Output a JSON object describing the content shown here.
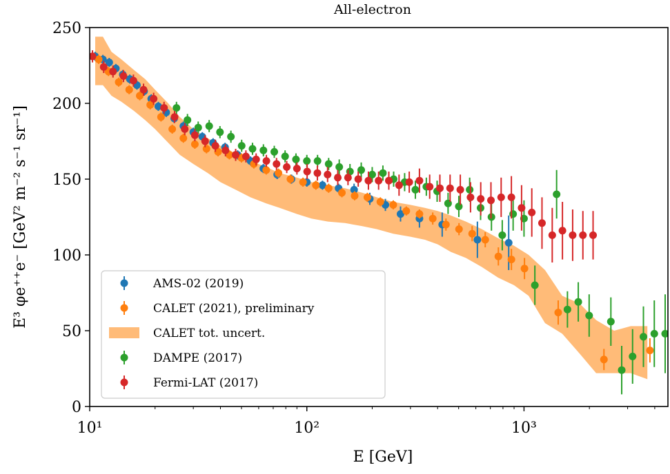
{
  "chart_data": {
    "type": "scatter",
    "title": "All-electron",
    "xlabel": "E [GeV]",
    "ylabel": "E³ φe⁺⁺e⁻ [GeV² m⁻² s⁻¹ sr⁻¹]",
    "xscale": "log",
    "xlim": [
      10,
      4600
    ],
    "ylim": [
      0,
      250
    ],
    "x_ticks": [
      10,
      100,
      1000
    ],
    "x_tick_labels": [
      "10¹",
      "10²",
      "10³"
    ],
    "y_ticks": [
      0,
      50,
      100,
      150,
      200,
      250
    ],
    "y_tick_labels": [
      "0",
      "50",
      "100",
      "150",
      "200",
      "250"
    ],
    "legend_position": "lower-left",
    "band": {
      "name": "CALET tot. uncert.",
      "color": "#ffbb78",
      "x": [
        10.6,
        11.5,
        12.6,
        14,
        16,
        18,
        20,
        23,
        26,
        30,
        35,
        40,
        47,
        55,
        65,
        75,
        90,
        105,
        125,
        150,
        180,
        210,
        250,
        300,
        350,
        400,
        460,
        540,
        640,
        760,
        900,
        1050,
        1250,
        1500,
        1800,
        2150,
        2600,
        3100,
        3700
      ],
      "upper": [
        244,
        244,
        234,
        229,
        222,
        216,
        209,
        200,
        191,
        183,
        177,
        172,
        167,
        162,
        158,
        154,
        151,
        148,
        146,
        144,
        141,
        138,
        135,
        133,
        131,
        129,
        126,
        122,
        117,
        111,
        106,
        100,
        90,
        73,
        68,
        57,
        50,
        53,
        53
      ],
      "lower": [
        212,
        212,
        205,
        201,
        195,
        189,
        183,
        174,
        166,
        160,
        154,
        148,
        143,
        138,
        134,
        131,
        127,
        124,
        122,
        121,
        119,
        117,
        114,
        112,
        110,
        107,
        102,
        98,
        92,
        85,
        80,
        73,
        55,
        48,
        35,
        22,
        22,
        22,
        18
      ]
    },
    "series": [
      {
        "name": "AMS-02 (2019)",
        "color": "#1f77b4",
        "x": [
          10.6,
          11.5,
          12.3,
          13.2,
          14.2,
          15.3,
          16.5,
          17.8,
          19.2,
          20.7,
          22.5,
          24.5,
          27,
          30,
          33,
          37,
          42,
          48,
          55,
          63,
          73,
          85,
          100,
          118,
          140,
          165,
          195,
          230,
          270,
          330,
          420,
          610,
          850
        ],
        "y": [
          231,
          229,
          227,
          223,
          219,
          216,
          212,
          208,
          203,
          198,
          194,
          190,
          185,
          181,
          178,
          174,
          171,
          166,
          162,
          157,
          153,
          150,
          148,
          146,
          144,
          143,
          137,
          133,
          127,
          124,
          120,
          110,
          108
        ],
        "err": [
          3,
          3,
          3,
          3,
          3,
          3,
          3,
          3,
          3,
          3,
          3,
          3,
          3,
          3,
          3,
          3,
          3,
          3,
          3,
          3,
          3,
          3,
          3,
          3,
          3,
          4,
          4,
          4,
          5,
          6,
          8,
          12,
          18
        ]
      },
      {
        "name": "CALET (2021), preliminary",
        "color": "#ff7f0e",
        "x": [
          11,
          12.2,
          13.6,
          15.2,
          17,
          19,
          21.3,
          24,
          27,
          30.5,
          34.5,
          39,
          44,
          50,
          57,
          65,
          74,
          84,
          96,
          110,
          126,
          145,
          166,
          190,
          218,
          250,
          287,
          330,
          380,
          437,
          502,
          577,
          663,
          762,
          875,
          1005,
          1437,
          2334,
          3800
        ],
        "y": [
          229,
          221,
          214,
          209,
          205,
          199,
          191,
          183,
          177,
          173,
          170,
          168,
          166,
          164,
          160,
          156,
          154,
          150,
          148,
          146,
          144,
          141,
          139,
          138,
          135,
          133,
          129,
          127,
          124,
          120,
          117,
          114,
          110,
          99,
          97,
          91,
          62,
          31,
          37
        ],
        "err": [
          3,
          3,
          3,
          3,
          3,
          3,
          3,
          3,
          3,
          3,
          3,
          3,
          3,
          3,
          3,
          3,
          3,
          3,
          3,
          3,
          3,
          3,
          3,
          3,
          3,
          3,
          3,
          3,
          4,
          4,
          4,
          5,
          5,
          6,
          7,
          7,
          8,
          7,
          8
        ]
      },
      {
        "name": "DAMPE (2017)",
        "color": "#2ca02c",
        "x": [
          25.1,
          28.2,
          31.6,
          35.5,
          39.8,
          44.7,
          50.1,
          56.2,
          63.1,
          70.8,
          79.4,
          89.1,
          100,
          112,
          126,
          141,
          158,
          178,
          200,
          224,
          251,
          282,
          316,
          355,
          398,
          447,
          501,
          562,
          631,
          708,
          794,
          891,
          1000,
          1122,
          1413,
          1585,
          1778,
          1995,
          2512,
          2818,
          3162,
          3548,
          3981,
          4467
        ],
        "y": [
          197,
          189,
          184,
          185,
          181,
          178,
          172,
          170,
          169,
          168,
          165,
          163,
          162,
          162,
          160,
          158,
          155,
          156,
          153,
          154,
          150,
          148,
          143,
          145,
          142,
          134,
          132,
          143,
          131,
          125,
          113,
          127,
          124,
          80,
          140,
          64,
          69,
          60,
          56,
          24,
          33,
          46,
          48,
          48
        ],
        "err": [
          4,
          4,
          4,
          4,
          4,
          4,
          4,
          4,
          4,
          4,
          4,
          4,
          4,
          4,
          4,
          5,
          5,
          5,
          5,
          5,
          5,
          6,
          6,
          6,
          7,
          7,
          7,
          8,
          8,
          9,
          10,
          11,
          12,
          13,
          16,
          12,
          13,
          14,
          16,
          16,
          18,
          20,
          22,
          26
        ]
      },
      {
        "name": "Fermi-LAT (2017)",
        "color": "#d62728",
        "x": [
          10.3,
          11.6,
          12.8,
          14.3,
          15.9,
          17.7,
          19.7,
          22,
          24.6,
          27.4,
          30.5,
          34,
          37.9,
          42.2,
          47,
          52.4,
          58.4,
          65.1,
          72.5,
          80.8,
          90,
          100.3,
          111.8,
          124.6,
          138.8,
          154.7,
          172.4,
          192.1,
          214,
          238.5,
          265.8,
          296.2,
          330,
          367.8,
          409.8,
          456.7,
          508.9,
          567.1,
          632,
          704.3,
          784.8,
          874.6,
          974.6,
          1086,
          1210,
          1349,
          1503,
          1675,
          1867,
          2080
        ],
        "y": [
          231,
          224,
          221,
          218,
          215,
          209,
          203,
          197,
          191,
          183,
          179,
          175,
          172,
          169,
          166,
          165,
          163,
          162,
          160,
          158,
          157,
          155,
          154,
          153,
          151,
          151,
          150,
          149,
          149,
          149,
          146,
          148,
          149,
          145,
          144,
          144,
          143,
          138,
          137,
          136,
          138,
          138,
          131,
          128,
          121,
          113,
          116,
          113,
          113,
          113
        ],
        "err": [
          4,
          4,
          4,
          4,
          4,
          4,
          4,
          4,
          4,
          4,
          4,
          4,
          4,
          4,
          4,
          4,
          4,
          4,
          4,
          4,
          4,
          5,
          5,
          5,
          5,
          5,
          5,
          6,
          6,
          6,
          7,
          7,
          8,
          8,
          9,
          9,
          10,
          10,
          11,
          12,
          13,
          14,
          15,
          16,
          17,
          18,
          19,
          17,
          16,
          16
        ]
      }
    ]
  }
}
